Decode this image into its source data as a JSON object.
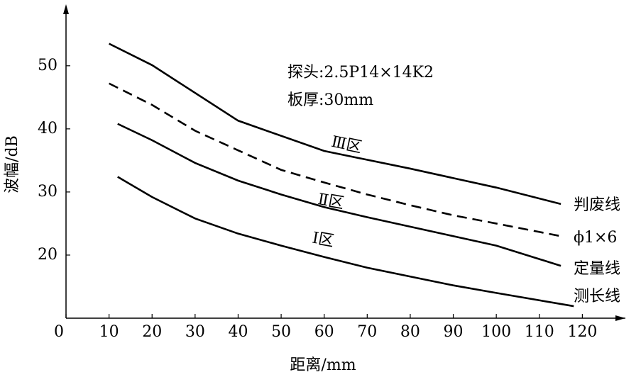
{
  "chart_data": {
    "type": "line",
    "xlabel": "距离/mm",
    "ylabel": "波幅/dB",
    "xlim": [
      0,
      130
    ],
    "ylim": [
      10,
      59.3
    ],
    "xticks": [
      0,
      10,
      20,
      30,
      40,
      50,
      60,
      70,
      80,
      90,
      100,
      110,
      120
    ],
    "yticks": [
      20,
      30,
      40,
      50
    ],
    "grid": false,
    "annotations": [
      "探头:2.5P14×14K2",
      "板厚:30mm",
      "Ⅲ区",
      "Ⅱ区",
      "Ⅰ区"
    ],
    "series": [
      {
        "name": "判废线",
        "color": "#000000",
        "dashed": false,
        "x": [
          10,
          20,
          40,
          60,
          80,
          100,
          115
        ],
        "values": [
          53.5,
          50.1,
          41.3,
          36.5,
          33.7,
          30.7,
          28.1
        ]
      },
      {
        "name": "ϕ1×6",
        "color": "#000000",
        "dashed": true,
        "x": [
          10,
          20,
          30,
          40,
          50,
          60,
          70,
          80,
          90,
          100,
          115
        ],
        "values": [
          47.2,
          43.8,
          39.7,
          36.6,
          33.5,
          31.5,
          29.6,
          27.9,
          26.3,
          25,
          23
        ]
      },
      {
        "name": "定量线",
        "color": "#000000",
        "dashed": false,
        "x": [
          12,
          20,
          30,
          40,
          50,
          60,
          70,
          80,
          90,
          100,
          115
        ],
        "values": [
          40.8,
          38.2,
          34.6,
          31.8,
          29.6,
          27.6,
          26,
          24.5,
          23,
          21.5,
          18.3
        ]
      },
      {
        "name": "测长线",
        "color": "#000000",
        "dashed": false,
        "x": [
          12,
          20,
          30,
          40,
          50,
          60,
          70,
          80,
          90,
          100,
          118
        ],
        "values": [
          32.4,
          29.2,
          25.8,
          23.4,
          21.5,
          19.7,
          18,
          16.6,
          15.2,
          14,
          11.9
        ]
      }
    ]
  }
}
